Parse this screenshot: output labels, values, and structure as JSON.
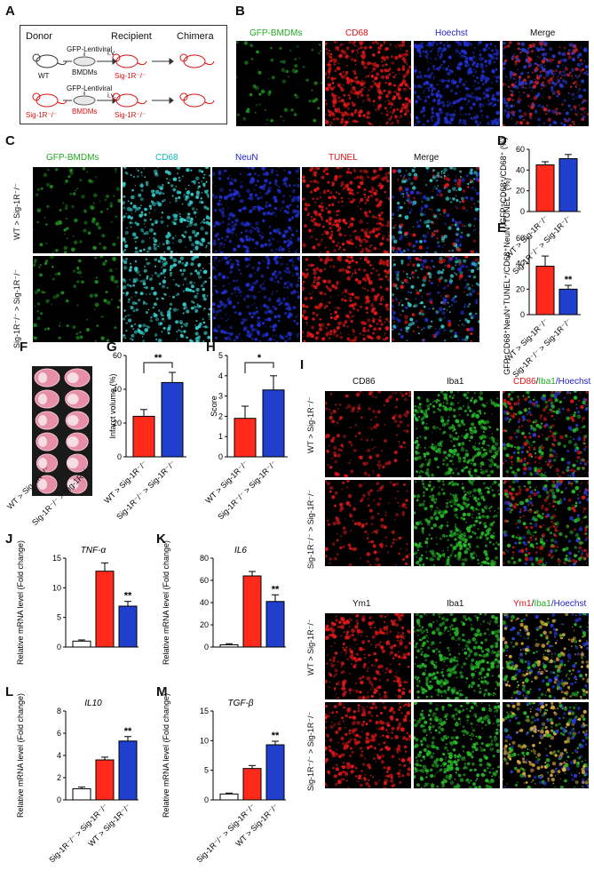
{
  "panels": {
    "A": "A",
    "B": "B",
    "C": "C",
    "D": "D",
    "E": "E",
    "F": "F",
    "G": "G",
    "H": "H",
    "I": "I",
    "J": "J",
    "K": "K",
    "L": "L",
    "M": "M"
  },
  "schematic": {
    "donor": "Donor",
    "recipient": "Recipient",
    "chimera": "Chimera",
    "lentiviral_1": "GFP-Lentiviral",
    "lentiviral_2": "GFP-Lentiviral",
    "bmdms_1": "BMDMs",
    "bmdms_2": "BMDMs",
    "iv_1": "i.v.",
    "iv_2": "i.v.",
    "wt": "WT",
    "sig_donor": "Sig-1R⁻/⁻",
    "sig_recip_1": "Sig-1R⁻/⁻",
    "sig_recip_2": "Sig-1R⁻/⁻"
  },
  "panelB": {
    "channels": [
      "GFP-BMDMs",
      "CD68",
      "Hoechst",
      "Merge"
    ],
    "colors": [
      "#22aa22",
      "#dd1111",
      "#2222cc",
      "#111111"
    ]
  },
  "panelC": {
    "channels": [
      "GFP-BMDMs",
      "CD68",
      "NeuN",
      "TUNEL",
      "Merge"
    ],
    "colors": [
      "#22aa22",
      "#11bbbb",
      "#2222cc",
      "#dd1111",
      "#111111"
    ],
    "rows": [
      "WT > Sig-1R⁻/⁻",
      "Sig-1R⁻/⁻ > Sig-1R⁻/⁻"
    ]
  },
  "panelF": {
    "rows": [
      "WT > Sig-1R⁻/⁻",
      "Sig-1R⁻/⁻ > Sig-1R⁻/⁻"
    ]
  },
  "panelI": {
    "top_channels": [
      "CD86",
      "Iba1",
      "CD86",
      "/",
      "Iba1",
      "/Hoechst"
    ],
    "bottom_channels": [
      "Ym1",
      "Iba1",
      "Ym1",
      "/",
      "Iba1",
      "/Hoechst"
    ],
    "rows": [
      "WT > Sig-1R⁻/⁻",
      "Sig-1R⁻/⁻ > Sig-1R⁻/⁻",
      "WT > Sig-1R⁻/⁻",
      "Sig-1R⁻/⁻ > Sig-1R⁻/⁻"
    ]
  },
  "chart_data": [
    {
      "panel": "D",
      "type": "bar",
      "categories": [
        "WT > Sig-1R⁻/⁻",
        "Sig-1R⁻/⁻ > Sig-1R⁻/⁻"
      ],
      "values": [
        45,
        51
      ],
      "errors": [
        3,
        4
      ],
      "ylabel": "GFP⁺CD68⁺/CD68⁺ (%)",
      "ylim": [
        0,
        60
      ],
      "yticks": [
        0,
        20,
        40,
        60
      ],
      "colors": [
        "#ff2a1a",
        "#1f3fcc"
      ],
      "significance": ""
    },
    {
      "panel": "E",
      "type": "bar",
      "categories": [
        "WT > Sig-1R⁻/⁻",
        "Sig-1R⁻/⁻ > Sig-1R⁻/⁻"
      ],
      "values": [
        38,
        20
      ],
      "errors": [
        8,
        3
      ],
      "ylabel": "GFP⁺CD68⁺NeuN⁺TUNEL⁺/CD68⁺NeuN⁺TUNEL⁺ (%)",
      "ylim": [
        0,
        60
      ],
      "yticks": [
        0,
        20,
        40,
        60
      ],
      "colors": [
        "#ff2a1a",
        "#1f3fcc"
      ],
      "significance": "**"
    },
    {
      "panel": "G",
      "type": "bar",
      "categories": [
        "WT > Sig-1R⁻/⁻",
        "Sig-1R⁻/⁻ > Sig-1R⁻/⁻"
      ],
      "values": [
        24,
        44
      ],
      "errors": [
        4,
        6
      ],
      "ylabel": "Infarct volume (%)",
      "ylim": [
        0,
        60
      ],
      "yticks": [
        0,
        20,
        40,
        60
      ],
      "colors": [
        "#ff2a1a",
        "#1f3fcc"
      ],
      "significance": "**"
    },
    {
      "panel": "H",
      "type": "bar",
      "categories": [
        "WT > Sig-1R⁻/⁻",
        "Sig-1R⁻/⁻ > Sig-1R⁻/⁻"
      ],
      "values": [
        1.9,
        3.3
      ],
      "errors": [
        0.6,
        0.7
      ],
      "ylabel": "Score",
      "ylim": [
        0,
        5
      ],
      "yticks": [
        0,
        1,
        2,
        3,
        4,
        5
      ],
      "colors": [
        "#ff2a1a",
        "#1f3fcc"
      ],
      "significance": "*"
    },
    {
      "panel": "J",
      "type": "bar",
      "title": "TNF-α",
      "values": [
        1,
        12.8,
        6.9
      ],
      "errors": [
        0.2,
        1.4,
        0.8
      ],
      "ylabel": "Relative mRNA level (Fold change)",
      "ylim": [
        0,
        15
      ],
      "yticks": [
        0,
        5,
        10,
        15
      ],
      "colors": [
        "#ffffff",
        "#ff2a1a",
        "#1f3fcc"
      ],
      "significance": "**"
    },
    {
      "panel": "K",
      "type": "bar",
      "title": "IL6",
      "values": [
        2,
        64,
        41
      ],
      "errors": [
        1,
        4,
        6
      ],
      "ylabel": "Relative mRNA level (Fold change)",
      "ylim": [
        0,
        80
      ],
      "yticks": [
        0,
        20,
        40,
        60,
        80
      ],
      "colors": [
        "#ffffff",
        "#ff2a1a",
        "#1f3fcc"
      ],
      "significance": "**"
    },
    {
      "panel": "L",
      "type": "bar",
      "title": "IL10",
      "categories": [
        "",
        "Sig-1R⁻/⁻ > Sig-1R⁻/⁻",
        "WT > Sig-1R⁻/⁻"
      ],
      "values": [
        1,
        3.6,
        5.3
      ],
      "errors": [
        0.15,
        0.25,
        0.4
      ],
      "ylabel": "Relative mRNA level (Fold change)",
      "ylim": [
        0,
        8
      ],
      "yticks": [
        0,
        2,
        4,
        6,
        8
      ],
      "colors": [
        "#ffffff",
        "#ff2a1a",
        "#1f3fcc"
      ],
      "significance": "**"
    },
    {
      "panel": "M",
      "type": "bar",
      "title": "TGF-β",
      "categories": [
        "",
        "Sig-1R⁻/⁻ > Sig-1R⁻/⁻",
        "WT > Sig-1R⁻/⁻"
      ],
      "values": [
        1,
        5.3,
        9.3
      ],
      "errors": [
        0.15,
        0.5,
        0.6
      ],
      "ylabel": "Relative mRNA level (Fold change)",
      "ylim": [
        0,
        15
      ],
      "yticks": [
        0,
        5,
        10,
        15
      ],
      "colors": [
        "#ffffff",
        "#ff2a1a",
        "#1f3fcc"
      ],
      "significance": "**"
    }
  ]
}
